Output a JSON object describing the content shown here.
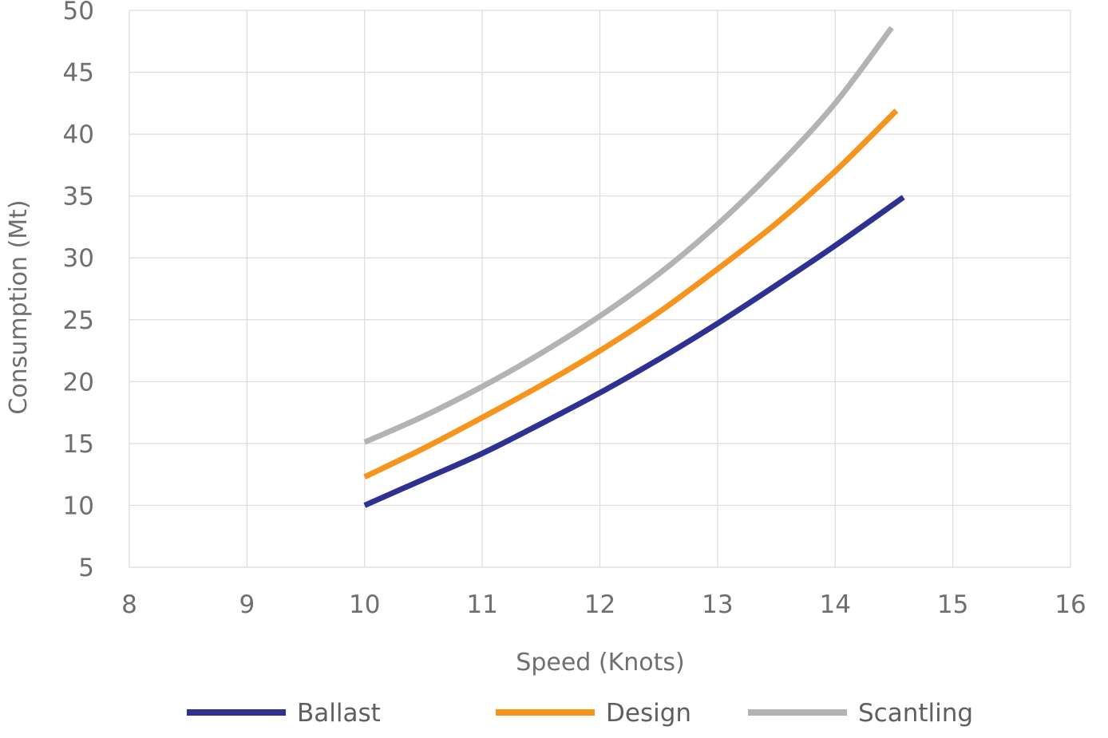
{
  "chart_data": {
    "type": "line",
    "title": "",
    "xlabel": "Speed (Knots)",
    "ylabel": "Consumption (Mt)",
    "xlim": [
      8,
      16
    ],
    "ylim": [
      5,
      50
    ],
    "xticks": [
      8,
      9,
      10,
      11,
      12,
      13,
      14,
      15,
      16
    ],
    "yticks": [
      5,
      10,
      15,
      20,
      25,
      30,
      35,
      40,
      45,
      50
    ],
    "grid": true,
    "legend_position": "bottom",
    "series": [
      {
        "name": "Ballast",
        "color": "#2e3192",
        "x": [
          10,
          10.5,
          11,
          11.5,
          12,
          12.5,
          13,
          13.5,
          14,
          14.58
        ],
        "y": [
          10,
          12.1,
          14.2,
          16.6,
          19.1,
          21.8,
          24.7,
          27.8,
          31.0,
          34.9
        ]
      },
      {
        "name": "Design",
        "color": "#f7941d",
        "x": [
          10,
          10.5,
          11,
          11.5,
          12,
          12.5,
          13,
          13.5,
          14,
          14.52
        ],
        "y": [
          12.3,
          14.6,
          17.1,
          19.7,
          22.5,
          25.6,
          29.1,
          32.8,
          37.0,
          41.9
        ]
      },
      {
        "name": "Scantling",
        "color": "#b3b3b3",
        "x": [
          10,
          10.5,
          11,
          11.5,
          12,
          12.5,
          13,
          13.5,
          14,
          14.48
        ],
        "y": [
          15.1,
          17.2,
          19.6,
          22.3,
          25.3,
          28.7,
          32.7,
          37.3,
          42.5,
          48.6
        ]
      }
    ]
  }
}
